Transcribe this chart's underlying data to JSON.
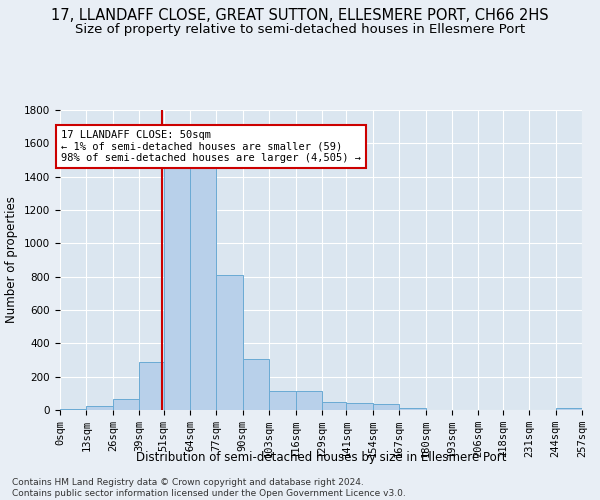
{
  "title": "17, LLANDAFF CLOSE, GREAT SUTTON, ELLESMERE PORT, CH66 2HS",
  "subtitle": "Size of property relative to semi-detached houses in Ellesmere Port",
  "xlabel": "Distribution of semi-detached houses by size in Ellesmere Port",
  "ylabel": "Number of properties",
  "footer_line1": "Contains HM Land Registry data © Crown copyright and database right 2024.",
  "footer_line2": "Contains public sector information licensed under the Open Government Licence v3.0.",
  "annotation_title": "17 LLANDAFF CLOSE: 50sqm",
  "annotation_line1": "← 1% of semi-detached houses are smaller (59)",
  "annotation_line2": "98% of semi-detached houses are larger (4,505) →",
  "property_size": 50,
  "bar_edges": [
    0,
    13,
    26,
    39,
    51,
    64,
    77,
    90,
    103,
    116,
    129,
    141,
    154,
    167,
    180,
    193,
    206,
    218,
    231,
    244,
    257
  ],
  "bar_heights": [
    5,
    25,
    65,
    290,
    1450,
    1500,
    810,
    305,
    115,
    115,
    50,
    40,
    35,
    10,
    0,
    0,
    0,
    0,
    0,
    10
  ],
  "bar_color": "#b8d0ea",
  "bar_edge_color": "#6aaad4",
  "vline_color": "#cc0000",
  "vline_x": 50,
  "annotation_box_color": "#cc0000",
  "ylim": [
    0,
    1800
  ],
  "yticks": [
    0,
    200,
    400,
    600,
    800,
    1000,
    1200,
    1400,
    1600,
    1800
  ],
  "background_color": "#e8eef5",
  "plot_bg_color": "#dbe6f0",
  "grid_color": "#ffffff",
  "title_fontsize": 10.5,
  "subtitle_fontsize": 9.5,
  "axis_label_fontsize": 8.5,
  "tick_fontsize": 7.5,
  "footer_fontsize": 6.5
}
